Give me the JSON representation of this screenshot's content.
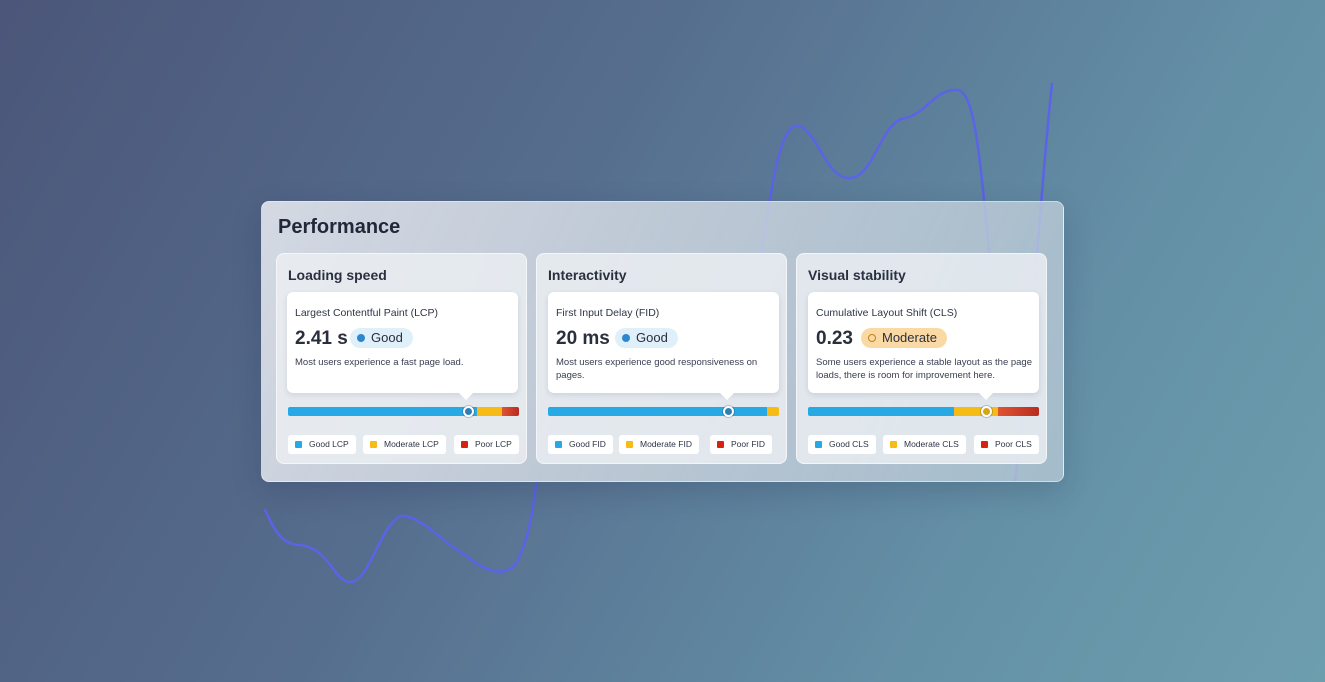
{
  "panel": {
    "title": "Performance"
  },
  "colors": {
    "good": "#27a9e6",
    "moderate": "#f6bb14",
    "poor": "#c43622",
    "wave": "#5b63e6"
  },
  "cards": [
    {
      "title": "Loading speed",
      "metric": "Largest Contentful Paint (LCP)",
      "value": "2.41 s",
      "status": "Good",
      "description": "Most users experience a fast page load.",
      "distribution": {
        "good": 0.82,
        "moderate": 0.11,
        "poor": 0.07
      },
      "marker_position": 0.78,
      "legend": [
        "Good LCP",
        "Moderate LCP",
        "Poor LCP"
      ]
    },
    {
      "title": "Interactivity",
      "metric": "First Input Delay (FID)",
      "value": "20 ms",
      "status": "Good",
      "description": "Most users experience good responsiveness on pages.",
      "distribution": {
        "good": 0.95,
        "moderate": 0.05,
        "poor": 0.0
      },
      "marker_position": 0.78,
      "legend": [
        "Good FID",
        "Moderate FID",
        "Poor FID"
      ]
    },
    {
      "title": "Visual stability",
      "metric": "Cumulative Layout Shift (CLS)",
      "value": "0.23",
      "status": "Moderate",
      "description": "Some users experience a stable layout as the page loads, there is room for improvement here.",
      "distribution": {
        "good": 0.63,
        "moderate": 0.19,
        "poor": 0.18
      },
      "marker_position": 0.77,
      "legend": [
        "Good CLS",
        "Moderate CLS",
        "Poor CLS"
      ]
    }
  ]
}
